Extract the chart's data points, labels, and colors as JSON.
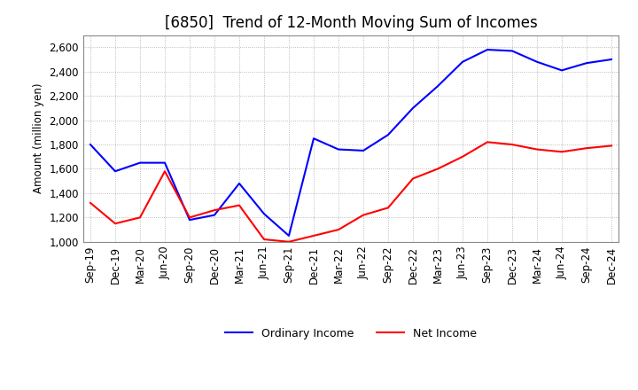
{
  "title": "[6850]  Trend of 12-Month Moving Sum of Incomes",
  "ylabel": "Amount (million yen)",
  "background_color": "#ffffff",
  "grid_color": "#aaaaaa",
  "x_labels": [
    "Sep-19",
    "Dec-19",
    "Mar-20",
    "Jun-20",
    "Sep-20",
    "Dec-20",
    "Mar-21",
    "Jun-21",
    "Sep-21",
    "Dec-21",
    "Mar-22",
    "Jun-22",
    "Sep-22",
    "Dec-22",
    "Mar-23",
    "Jun-23",
    "Sep-23",
    "Dec-23",
    "Mar-24",
    "Jun-24",
    "Sep-24",
    "Dec-24"
  ],
  "ordinary_income": [
    1800,
    1580,
    1650,
    1650,
    1180,
    1220,
    1480,
    1230,
    1050,
    1850,
    1760,
    1750,
    1880,
    2100,
    2280,
    2480,
    2580,
    2570,
    2480,
    2410,
    2470,
    2500
  ],
  "net_income": [
    1320,
    1150,
    1200,
    1580,
    1200,
    1260,
    1300,
    1020,
    1000,
    1050,
    1100,
    1220,
    1280,
    1520,
    1600,
    1700,
    1820,
    1800,
    1760,
    1740,
    1770,
    1790
  ],
  "ordinary_color": "#0000ff",
  "net_color": "#ff0000",
  "ylim_min": 1000,
  "ylim_max": 2700,
  "yticks": [
    1000,
    1200,
    1400,
    1600,
    1800,
    2000,
    2200,
    2400,
    2600
  ],
  "title_fontsize": 12,
  "legend_fontsize": 9,
  "axis_fontsize": 8.5
}
